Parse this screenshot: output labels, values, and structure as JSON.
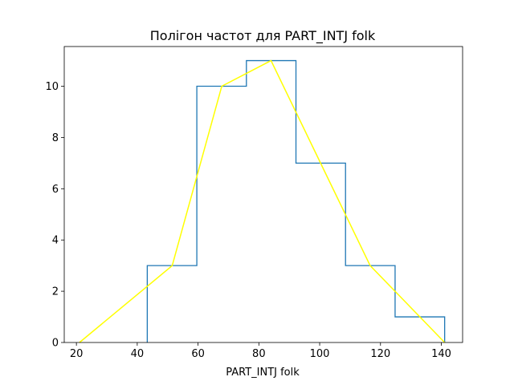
{
  "chart_data": {
    "type": "line",
    "title": "Полігон частот для PART_INTJ folk",
    "xlabel": "PART_INTJ folk",
    "ylabel": "",
    "xlim": [
      16,
      147
    ],
    "ylim": [
      0,
      11.55
    ],
    "xticks": [
      20,
      40,
      60,
      80,
      100,
      120,
      140
    ],
    "yticks": [
      0,
      2,
      4,
      6,
      8,
      10
    ],
    "grid": false,
    "histogram_step": {
      "edges": [
        43.3,
        59.6,
        75.9,
        92.2,
        108.5,
        124.8,
        141.1
      ],
      "counts": [
        3,
        10,
        11,
        7,
        3,
        1
      ],
      "color": "#1f77b4"
    },
    "polygon": {
      "x": [
        21.0,
        51.5,
        67.8,
        84.0,
        100.3,
        116.6,
        141.1
      ],
      "y": [
        0,
        3,
        10,
        11,
        7,
        3,
        0
      ],
      "color": "#ffff00"
    }
  }
}
